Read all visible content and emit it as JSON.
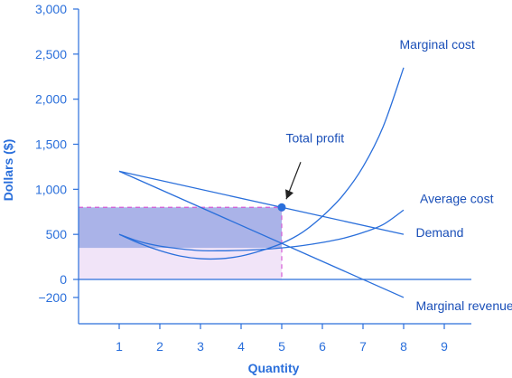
{
  "chart_data": {
    "type": "line",
    "xlabel": "Quantity",
    "ylabel": "Dollars ($)",
    "xlim": [
      0,
      9.7
    ],
    "ylim": [
      -200,
      3000
    ],
    "x_ticks": [
      1,
      2,
      3,
      4,
      5,
      6,
      7,
      8,
      9
    ],
    "y_ticks": [
      -200,
      0,
      500,
      1000,
      1500,
      2000,
      2500,
      3000
    ],
    "y_tick_labels": [
      "−200",
      "0",
      "500",
      "1,000",
      "1,500",
      "2,000",
      "2,500",
      "3,000"
    ],
    "grid": false,
    "series": [
      {
        "name": "Marginal cost",
        "x": [
          1,
          1.5,
          2,
          2.5,
          3,
          3.5,
          4,
          4.5,
          5,
          5.5,
          6,
          6.5,
          7,
          7.5,
          8
        ],
        "values": [
          500,
          400,
          320,
          260,
          230,
          230,
          260,
          320,
          400,
          520,
          700,
          930,
          1250,
          1700,
          2350
        ]
      },
      {
        "name": "Average cost",
        "x": [
          1,
          1.5,
          2,
          2.5,
          3,
          3.5,
          4,
          4.5,
          5,
          5.5,
          6,
          6.5,
          7,
          7.5,
          8
        ],
        "values": [
          500,
          420,
          370,
          340,
          320,
          318,
          322,
          332,
          350,
          375,
          410,
          455,
          520,
          610,
          770
        ]
      },
      {
        "name": "Demand",
        "x": [
          1,
          8
        ],
        "values": [
          1200,
          500
        ]
      },
      {
        "name": "Marginal revenue",
        "x": [
          1,
          8
        ],
        "values": [
          1200,
          -200
        ]
      }
    ],
    "profit_rectangle": {
      "x": [
        0,
        5
      ],
      "y": [
        350,
        800
      ]
    },
    "point": {
      "x": 5,
      "y": 800
    },
    "annotations": [
      {
        "text": "Marginal cost",
        "x": 7.9,
        "y": 2560
      },
      {
        "text": "Average cost",
        "x": 8.4,
        "y": 850
      },
      {
        "text": "Demand",
        "x": 8.3,
        "y": 470
      },
      {
        "text": "Marginal revenue",
        "x": 8.3,
        "y": -340
      },
      {
        "text": "Total profit",
        "x": 5.1,
        "y": 1520
      }
    ],
    "colors": {
      "axis": "#2a6fdb",
      "line": "#2a6fdb",
      "profit_fill": "#aab3e8",
      "cost_fill": "#f1e4f8",
      "dash": "#d65bd6",
      "text": "#1a4fb8",
      "arrow": "#222222"
    }
  }
}
